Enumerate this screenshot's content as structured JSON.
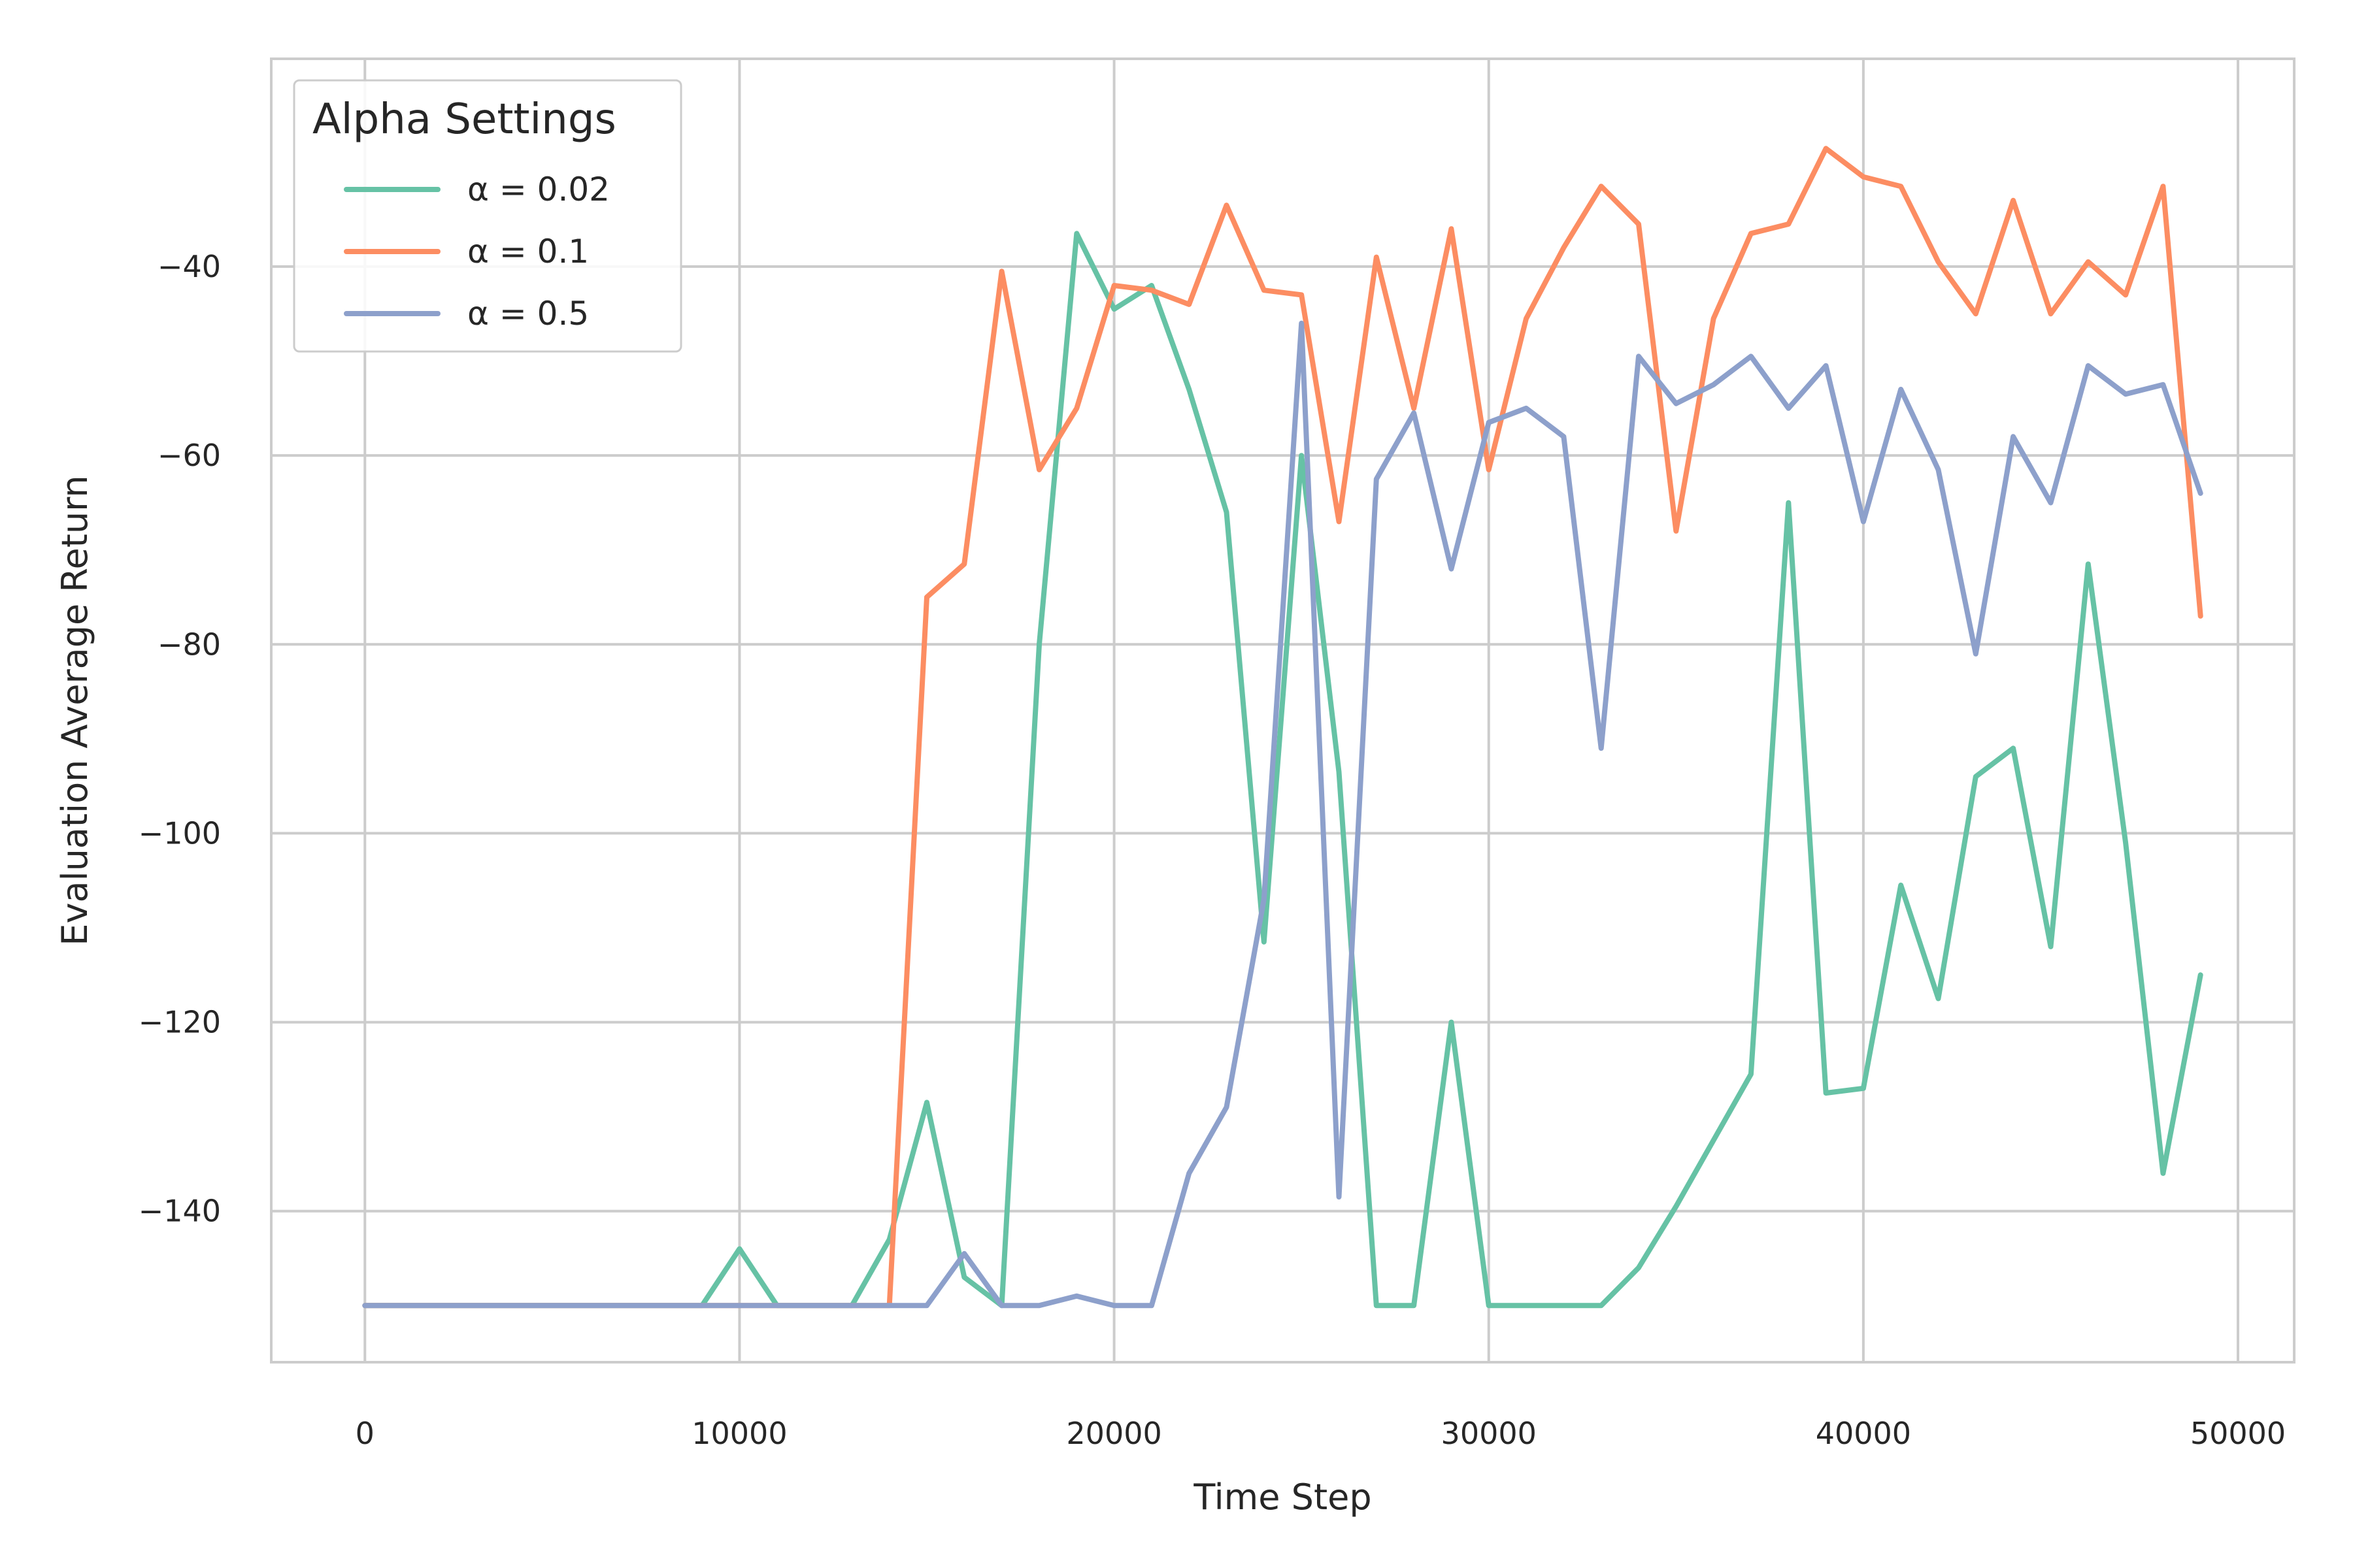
{
  "chart_data": {
    "type": "line",
    "xlabel": "Time Step",
    "ylabel": "Evaluation Average Return",
    "xlim": [
      -2500,
      51500
    ],
    "ylim": [
      -156,
      -18
    ],
    "xticks": [
      0,
      10000,
      20000,
      30000,
      40000,
      50000
    ],
    "yticks": [
      -140,
      -120,
      -100,
      -80,
      -60,
      -40
    ],
    "ytick_labels": [
      "−140",
      "−120",
      "−100",
      "−80",
      "−60",
      "−40"
    ],
    "grid": true,
    "legend": {
      "title": "Alpha Settings",
      "placement": "top-left"
    },
    "x": [
      0,
      1000,
      2000,
      3000,
      4000,
      5000,
      6000,
      7000,
      8000,
      9000,
      10000,
      11000,
      12000,
      13000,
      14000,
      15000,
      16000,
      17000,
      18000,
      19000,
      20000,
      21000,
      22000,
      23000,
      24000,
      25000,
      26000,
      27000,
      28000,
      29000,
      30000,
      31000,
      32000,
      33000,
      34000,
      35000,
      36000,
      37000,
      38000,
      39000,
      40000,
      41000,
      42000,
      43000,
      44000,
      45000,
      46000,
      47000,
      48000,
      49000
    ],
    "series": [
      {
        "name": "α = 0.02",
        "color": "#66c2a5",
        "values": [
          -150,
          -150,
          -150,
          -150,
          -150,
          -150,
          -150,
          -150,
          -150,
          -150,
          -144,
          -150,
          -150,
          -150,
          -143,
          -128.5,
          -147,
          -150,
          -80,
          -36.5,
          -44.5,
          -42,
          -53,
          -66,
          -111.5,
          -60,
          -93.5,
          -150,
          -150,
          -120,
          -150,
          -150,
          -150,
          -150,
          -146,
          -139.5,
          -132.5,
          -125.5,
          -65,
          -127.5,
          -127,
          -105.5,
          -117.5,
          -94,
          -91,
          -112,
          -71.5,
          -101,
          -136,
          -115
        ]
      },
      {
        "name": "α = 0.1",
        "color": "#fc8d62",
        "values": [
          -150,
          -150,
          -150,
          -150,
          -150,
          -150,
          -150,
          -150,
          -150,
          -150,
          -150,
          -150,
          -150,
          -150,
          -150,
          -75,
          -71.5,
          -40.5,
          -61.5,
          -55,
          -42,
          -42.5,
          -44,
          -33.5,
          -42.5,
          -43,
          -67,
          -39,
          -55,
          -36,
          -61.5,
          -45.5,
          -38,
          -31.5,
          -35.5,
          -68,
          -45.5,
          -36.5,
          -35.5,
          -27.5,
          -30.5,
          -31.5,
          -39.5,
          -45,
          -33,
          -45,
          -39.5,
          -43,
          -31.5,
          -77
        ]
      },
      {
        "name": "α = 0.5",
        "color": "#8da0cb",
        "values": [
          -150,
          -150,
          -150,
          -150,
          -150,
          -150,
          -150,
          -150,
          -150,
          -150,
          -150,
          -150,
          -150,
          -150,
          -150,
          -150,
          -144.5,
          -150,
          -150,
          -149,
          -150,
          -150,
          -136,
          -129,
          -107,
          -46,
          -138.5,
          -62.5,
          -55.5,
          -72,
          -56.5,
          -55,
          -58,
          -91,
          -49.5,
          -54.5,
          -52.5,
          -49.5,
          -55,
          -50.5,
          -67,
          -53,
          -61.5,
          -81,
          -58,
          -65,
          -50.5,
          -53.5,
          -52.5,
          -64
        ]
      }
    ]
  }
}
